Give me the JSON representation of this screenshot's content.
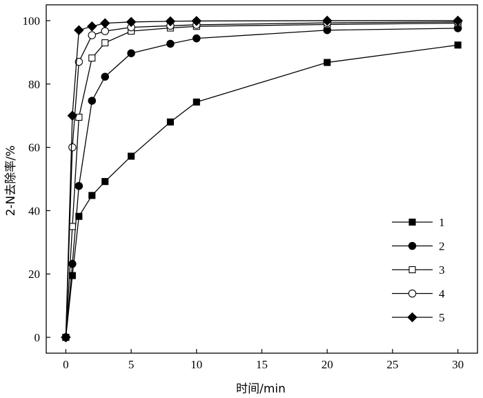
{
  "chart_data": {
    "type": "line",
    "title": "",
    "xlabel": "时间/min",
    "ylabel": "2-N去除率/%",
    "xlim": [
      -1.5,
      31.5
    ],
    "ylim": [
      -5,
      105
    ],
    "xticks": [
      0,
      5,
      10,
      15,
      20,
      25,
      30
    ],
    "yticks": [
      0,
      20,
      40,
      60,
      80,
      100
    ],
    "grid": false,
    "legend_position": "bottom-right",
    "series": [
      {
        "name": "1",
        "marker": "square-filled",
        "x": [
          0,
          0.5,
          1,
          2,
          3,
          5,
          8,
          10,
          20,
          30
        ],
        "y": [
          0,
          19.5,
          38.2,
          44.8,
          49.2,
          57.2,
          68.0,
          74.3,
          86.8,
          92.3
        ]
      },
      {
        "name": "2",
        "marker": "circle-filled",
        "x": [
          0,
          0.5,
          1,
          2,
          3,
          5,
          8,
          10,
          20,
          30
        ],
        "y": [
          0,
          23.2,
          47.8,
          74.7,
          82.3,
          89.7,
          92.7,
          94.4,
          97.0,
          97.6
        ]
      },
      {
        "name": "3",
        "marker": "square-open",
        "x": [
          0,
          0.5,
          1,
          2,
          3,
          5,
          8,
          10,
          20,
          30
        ],
        "y": [
          0,
          35.0,
          69.5,
          88.2,
          93.0,
          96.7,
          97.7,
          98.2,
          98.8,
          99.2
        ]
      },
      {
        "name": "4",
        "marker": "circle-open",
        "x": [
          0,
          0.5,
          1,
          2,
          3,
          5,
          8,
          10,
          20,
          30
        ],
        "y": [
          0,
          60.0,
          87.0,
          95.4,
          96.7,
          97.9,
          98.4,
          98.7,
          99.3,
          99.6
        ]
      },
      {
        "name": "5",
        "marker": "diamond-filled",
        "x": [
          0,
          0.5,
          1,
          2,
          3,
          5,
          8,
          10,
          20,
          30
        ],
        "y": [
          0,
          70.0,
          97.0,
          98.2,
          99.2,
          99.6,
          99.8,
          99.9,
          100,
          100
        ]
      }
    ]
  }
}
